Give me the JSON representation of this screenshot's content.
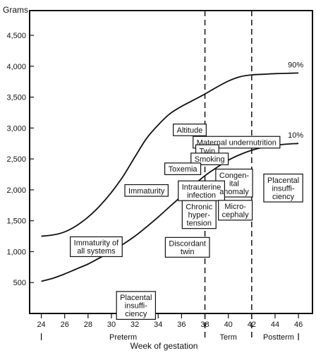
{
  "chart_data": {
    "type": "line",
    "ylabel": "Grams",
    "xlabel": "Week of gestation",
    "x_ticks": [
      24,
      26,
      28,
      30,
      32,
      34,
      36,
      38,
      40,
      42,
      44,
      46
    ],
    "y_ticks": [
      {
        "value": 500,
        "label": "500"
      },
      {
        "value": 1000,
        "label": "1,000"
      },
      {
        "value": 1500,
        "label": "1,500"
      },
      {
        "value": 2000,
        "label": "2,000"
      },
      {
        "value": 2500,
        "label": "2,500"
      },
      {
        "value": 3000,
        "label": "3,000"
      },
      {
        "value": 3500,
        "label": "3,500"
      },
      {
        "value": 4000,
        "label": "4,000"
      },
      {
        "value": 4500,
        "label": "4,500"
      }
    ],
    "xlim": [
      23,
      47.2
    ],
    "ylim": [
      0,
      4900
    ],
    "series": [
      {
        "name": "90%",
        "x": [
          24,
          25,
          26,
          27,
          28,
          29,
          30,
          31,
          32,
          33,
          34,
          35,
          36,
          37,
          38,
          39,
          40,
          41,
          42,
          43,
          44,
          45,
          46
        ],
        "y": [
          1250,
          1270,
          1320,
          1420,
          1560,
          1740,
          1960,
          2220,
          2530,
          2830,
          3050,
          3230,
          3350,
          3450,
          3550,
          3660,
          3760,
          3830,
          3860,
          3870,
          3880,
          3885,
          3890
        ]
      },
      {
        "name": "10%",
        "x": [
          24,
          25,
          26,
          27,
          28,
          29,
          30,
          31,
          32,
          33,
          34,
          35,
          36,
          37,
          38,
          39,
          40,
          41,
          42,
          43,
          44,
          45,
          46
        ],
        "y": [
          520,
          570,
          640,
          720,
          800,
          900,
          1000,
          1120,
          1250,
          1400,
          1560,
          1730,
          1900,
          2070,
          2230,
          2360,
          2480,
          2570,
          2640,
          2690,
          2720,
          2740,
          2750
        ]
      }
    ],
    "period_lines": [
      38,
      42
    ],
    "periods": [
      {
        "label": "Preterm",
        "x": 31
      },
      {
        "label": "Term",
        "x": 40
      },
      {
        "label": "Postterm",
        "x": 44.3
      }
    ],
    "annotations": [
      {
        "lines": [
          "Altitude"
        ],
        "x": 36.7,
        "y": 2970
      },
      {
        "lines": [
          "Maternal undernutrition"
        ],
        "x": 40.7,
        "y": 2770
      },
      {
        "lines": [
          "Twin"
        ],
        "x": 38.2,
        "y": 2635
      },
      {
        "lines": [
          "Smoking"
        ],
        "x": 38.4,
        "y": 2500
      },
      {
        "lines": [
          "Toxemia"
        ],
        "x": 36.1,
        "y": 2340
      },
      {
        "lines": [
          "Congen-",
          "ital",
          "anomaly"
        ],
        "x": 40.5,
        "y": 2110
      },
      {
        "lines": [
          "Placental",
          "insuffi-",
          "ciency"
        ],
        "x": 44.7,
        "y": 2030
      },
      {
        "lines": [
          "Immaturity"
        ],
        "x": 33.0,
        "y": 1990
      },
      {
        "lines": [
          "Intrauterine",
          "infection"
        ],
        "x": 37.7,
        "y": 1985
      },
      {
        "lines": [
          "Chronic",
          "hyper-",
          "tension"
        ],
        "x": 37.5,
        "y": 1600
      },
      {
        "lines": [
          "Micro-",
          "cephaly"
        ],
        "x": 40.6,
        "y": 1670
      },
      {
        "lines": [
          "Discordant",
          "twin"
        ],
        "x": 36.5,
        "y": 1070
      },
      {
        "lines": [
          "Immaturity of",
          "all systems"
        ],
        "x": 28.7,
        "y": 1080
      },
      {
        "lines": [
          "Placental",
          "insuffi-",
          "ciency"
        ],
        "x": 32.1,
        "y": 130
      }
    ]
  }
}
